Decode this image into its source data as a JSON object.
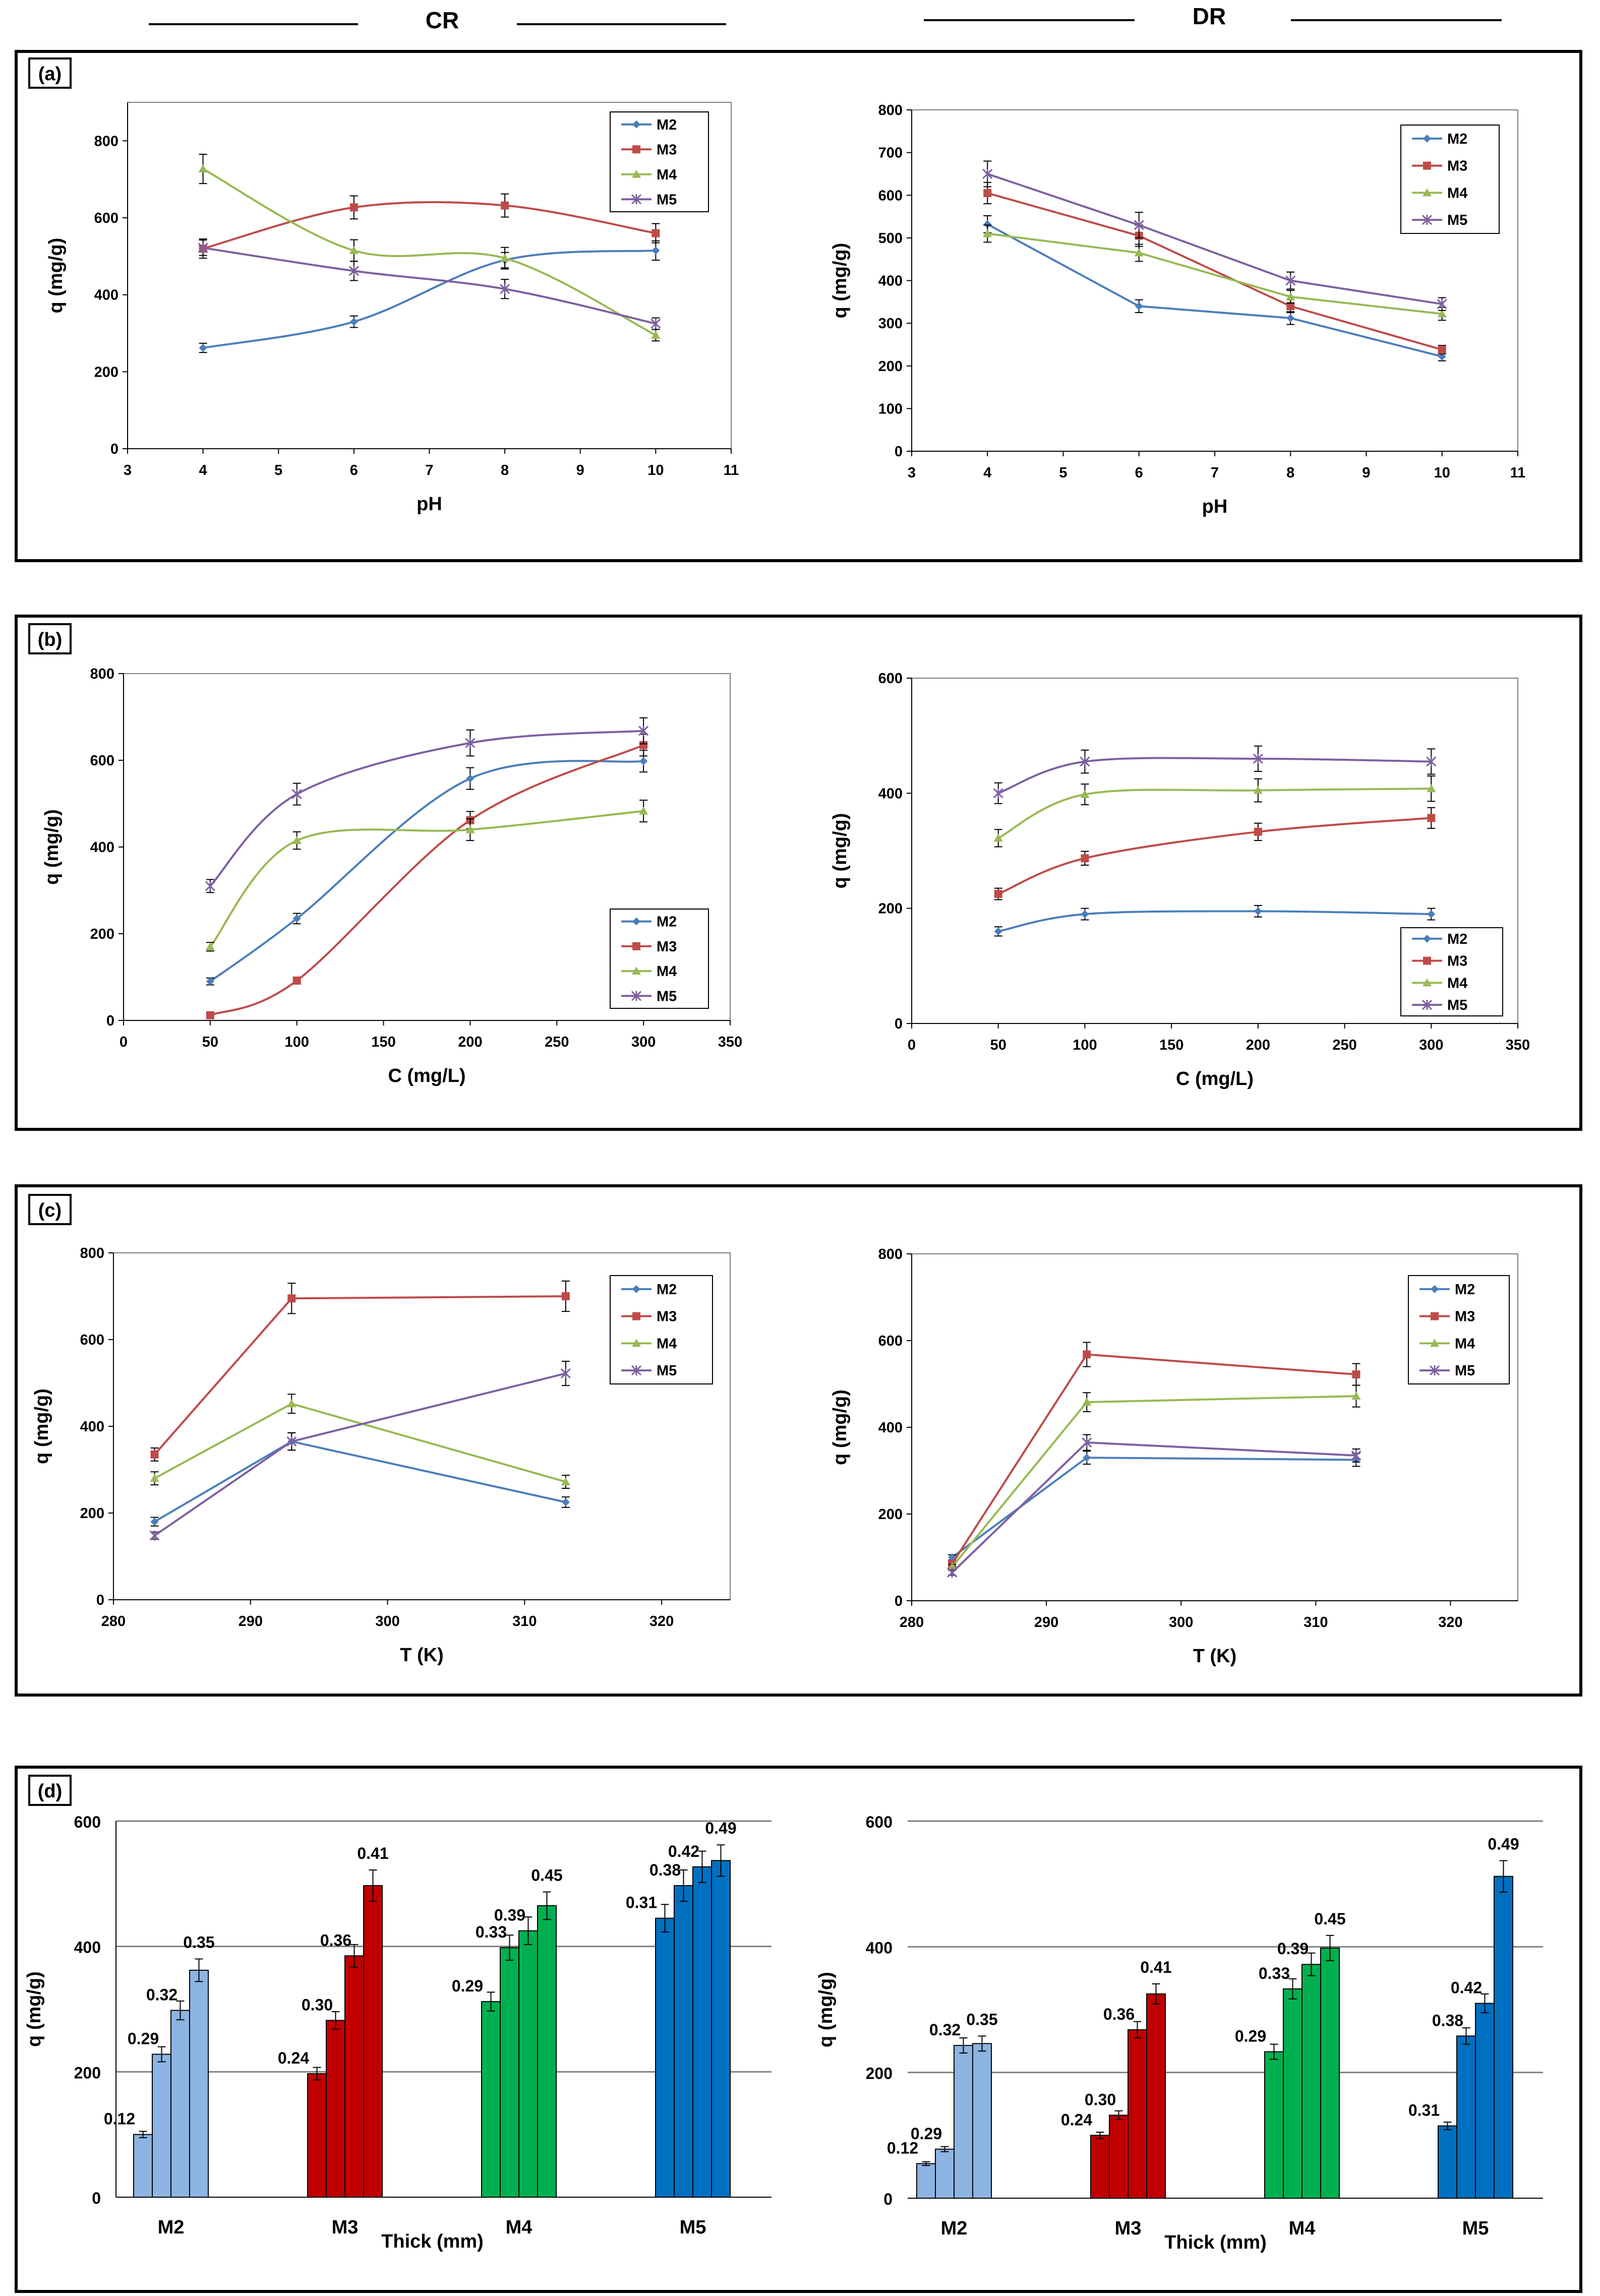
{
  "headers": {
    "left": "CR",
    "right": "DR"
  },
  "panels": [
    {
      "label": "(a)"
    },
    {
      "label": "(b)"
    },
    {
      "label": "(c)"
    },
    {
      "label": "(d)"
    }
  ],
  "colors": {
    "M2": "#4a7ebb",
    "M3": "#be4b48",
    "M4": "#98b954",
    "M5": "#7d60a0",
    "bar_M2": "#8db4e2",
    "bar_M3": "#c00000",
    "bar_M4": "#00b050",
    "bar_M5": "#0070c0"
  },
  "chart_data": [
    {
      "id": "a-CR",
      "panel": "(a)",
      "side": "CR",
      "type": "line",
      "xlabel": "pH",
      "ylabel": "q (mg/g)",
      "xlim": [
        3,
        11
      ],
      "ylim": [
        0,
        900
      ],
      "xticks": [
        3,
        4,
        5,
        6,
        7,
        8,
        9,
        10,
        11
      ],
      "yticks": [
        0,
        200,
        400,
        600,
        800
      ],
      "legend": "top-right",
      "series": [
        {
          "name": "M2",
          "x": [
            4,
            6,
            8,
            10
          ],
          "y": [
            262,
            330,
            490,
            515
          ],
          "err": [
            12,
            15,
            20,
            25
          ]
        },
        {
          "name": "M3",
          "x": [
            4,
            6,
            8,
            10
          ],
          "y": [
            520,
            627,
            632,
            560
          ],
          "err": [
            25,
            30,
            30,
            25
          ]
        },
        {
          "name": "M4",
          "x": [
            4,
            6,
            8,
            10
          ],
          "y": [
            727,
            515,
            495,
            295
          ],
          "err": [
            38,
            28,
            28,
            15
          ]
        },
        {
          "name": "M5",
          "x": [
            4,
            6,
            8,
            10
          ],
          "y": [
            522,
            462,
            415,
            325
          ],
          "err": [
            20,
            25,
            25,
            15
          ]
        }
      ]
    },
    {
      "id": "a-DR",
      "panel": "(a)",
      "side": "DR",
      "type": "line",
      "xlabel": "pH",
      "ylabel": "q (mg/g)",
      "xlim": [
        3,
        11
      ],
      "ylim": [
        0,
        800
      ],
      "xticks": [
        3,
        4,
        5,
        6,
        7,
        8,
        9,
        10,
        11
      ],
      "yticks": [
        0,
        100,
        200,
        300,
        400,
        500,
        600,
        700,
        800
      ],
      "legend": "top-right",
      "series": [
        {
          "name": "M2",
          "x": [
            4,
            6,
            8,
            10
          ],
          "y": [
            532,
            340,
            312,
            222
          ],
          "err": [
            20,
            15,
            15,
            10
          ]
        },
        {
          "name": "M3",
          "x": [
            4,
            6,
            8,
            10
          ],
          "y": [
            605,
            505,
            340,
            238
          ],
          "err": [
            25,
            25,
            15,
            10
          ]
        },
        {
          "name": "M4",
          "x": [
            4,
            6,
            8,
            10
          ],
          "y": [
            510,
            465,
            362,
            322
          ],
          "err": [
            20,
            20,
            15,
            15
          ]
        },
        {
          "name": "M5",
          "x": [
            4,
            6,
            8,
            10
          ],
          "y": [
            650,
            530,
            400,
            345
          ],
          "err": [
            30,
            30,
            20,
            15
          ]
        }
      ]
    },
    {
      "id": "b-CR",
      "panel": "(b)",
      "side": "CR",
      "type": "line",
      "xlabel": "C (mg/L)",
      "ylabel": "q (mg/g)",
      "xlim": [
        0,
        350
      ],
      "ylim": [
        0,
        800
      ],
      "xticks": [
        0,
        50,
        100,
        150,
        200,
        250,
        300,
        350
      ],
      "yticks": [
        0,
        200,
        400,
        600,
        800
      ],
      "legend": "bottom-right",
      "series": [
        {
          "name": "M2",
          "x": [
            50,
            100,
            200,
            300
          ],
          "y": [
            90,
            235,
            558,
            598
          ],
          "err": [
            8,
            12,
            25,
            25
          ]
        },
        {
          "name": "M3",
          "x": [
            50,
            100,
            200,
            300
          ],
          "y": [
            12,
            92,
            462,
            635
          ],
          "err": [
            5,
            8,
            20,
            25
          ]
        },
        {
          "name": "M4",
          "x": [
            50,
            100,
            200,
            300
          ],
          "y": [
            170,
            415,
            440,
            483
          ],
          "err": [
            10,
            20,
            25,
            25
          ]
        },
        {
          "name": "M5",
          "x": [
            50,
            100,
            200,
            300
          ],
          "y": [
            310,
            522,
            640,
            668
          ],
          "err": [
            15,
            25,
            30,
            30
          ]
        }
      ]
    },
    {
      "id": "b-DR",
      "panel": "(b)",
      "side": "DR",
      "type": "line",
      "xlabel": "C (mg/L)",
      "ylabel": "q (mg/g)",
      "xlim": [
        0,
        350
      ],
      "ylim": [
        0,
        600
      ],
      "xticks": [
        0,
        50,
        100,
        150,
        200,
        250,
        300,
        350
      ],
      "yticks": [
        0,
        200,
        400,
        600
      ],
      "legend": "bottom-right",
      "series": [
        {
          "name": "M2",
          "x": [
            50,
            100,
            200,
            300
          ],
          "y": [
            160,
            190,
            195,
            190
          ],
          "err": [
            8,
            10,
            10,
            10
          ]
        },
        {
          "name": "M3",
          "x": [
            50,
            100,
            200,
            300
          ],
          "y": [
            225,
            287,
            333,
            357
          ],
          "err": [
            10,
            12,
            15,
            18
          ]
        },
        {
          "name": "M4",
          "x": [
            50,
            100,
            200,
            300
          ],
          "y": [
            322,
            398,
            405,
            408
          ],
          "err": [
            15,
            18,
            20,
            22
          ]
        },
        {
          "name": "M5",
          "x": [
            50,
            100,
            200,
            300
          ],
          "y": [
            400,
            455,
            460,
            455
          ],
          "err": [
            18,
            20,
            22,
            22
          ]
        }
      ]
    },
    {
      "id": "c-CR",
      "panel": "(c)",
      "side": "CR",
      "type": "line",
      "xlabel": "T (K)",
      "ylabel": "q (mg/g)",
      "xlim": [
        280,
        325
      ],
      "ylim": [
        0,
        800
      ],
      "xticks": [
        280,
        290,
        300,
        310,
        320
      ],
      "yticks": [
        0,
        200,
        400,
        600,
        800
      ],
      "legend": "top-right",
      "series": [
        {
          "name": "M2",
          "x": [
            283,
            293,
            313
          ],
          "y": [
            180,
            365,
            225
          ],
          "err": [
            10,
            20,
            12
          ]
        },
        {
          "name": "M3",
          "x": [
            283,
            293,
            313
          ],
          "y": [
            335,
            695,
            700
          ],
          "err": [
            15,
            35,
            35
          ]
        },
        {
          "name": "M4",
          "x": [
            283,
            293,
            313
          ],
          "y": [
            280,
            452,
            272
          ],
          "err": [
            15,
            22,
            15
          ]
        },
        {
          "name": "M5",
          "x": [
            283,
            293,
            313
          ],
          "y": [
            148,
            365,
            522
          ],
          "err": [
            8,
            20,
            28
          ]
        }
      ]
    },
    {
      "id": "c-DR",
      "panel": "(c)",
      "side": "DR",
      "type": "line",
      "xlabel": "T (K)",
      "ylabel": "q (mg/g)",
      "xlim": [
        280,
        325
      ],
      "ylim": [
        0,
        800
      ],
      "xticks": [
        280,
        290,
        300,
        310,
        320
      ],
      "yticks": [
        0,
        200,
        400,
        600,
        800
      ],
      "legend": "top-right",
      "series": [
        {
          "name": "M2",
          "x": [
            283,
            293,
            313
          ],
          "y": [
            100,
            330,
            325
          ],
          "err": [
            6,
            15,
            15
          ]
        },
        {
          "name": "M3",
          "x": [
            283,
            293,
            313
          ],
          "y": [
            85,
            568,
            522
          ],
          "err": [
            6,
            28,
            25
          ]
        },
        {
          "name": "M4",
          "x": [
            283,
            293,
            313
          ],
          "y": [
            78,
            458,
            472
          ],
          "err": [
            6,
            22,
            25
          ]
        },
        {
          "name": "M5",
          "x": [
            283,
            293,
            313
          ],
          "y": [
            65,
            365,
            335
          ],
          "err": [
            6,
            18,
            15
          ]
        }
      ]
    },
    {
      "id": "d-CR",
      "panel": "(d)",
      "side": "CR",
      "type": "bar",
      "xlabel": "Thick (mm)",
      "ylabel": "q (mg/g)",
      "ylim": [
        0,
        600
      ],
      "yticks": [
        0,
        200,
        400,
        600
      ],
      "categories": [
        "M2",
        "M3",
        "M4",
        "M5"
      ],
      "groups": [
        {
          "name": "M2",
          "values": [
            100,
            228,
            298,
            362
          ],
          "err": [
            5,
            12,
            15,
            18
          ],
          "labels": [
            "0.12",
            "0.29",
            "0.32",
            "0.35"
          ]
        },
        {
          "name": "M3",
          "values": [
            197,
            282,
            385,
            497
          ],
          "err": [
            10,
            14,
            18,
            25
          ],
          "labels": [
            "0.24",
            "0.30",
            "0.36",
            "0.41"
          ]
        },
        {
          "name": "M4",
          "values": [
            312,
            398,
            425,
            465
          ],
          "err": [
            15,
            20,
            22,
            22
          ],
          "labels": [
            "0.29",
            "0.33",
            "0.39",
            "0.45"
          ]
        },
        {
          "name": "M5",
          "values": [
            445,
            497,
            527,
            537
          ],
          "err": [
            22,
            25,
            25,
            25
          ],
          "labels": [
            "0.31",
            "0.38",
            "0.42",
            "0.49"
          ]
        }
      ]
    },
    {
      "id": "d-DR",
      "panel": "(d)",
      "side": "DR",
      "type": "bar",
      "xlabel": "Thick (mm)",
      "ylabel": "q (mg/g)",
      "ylim": [
        0,
        600
      ],
      "yticks": [
        0,
        200,
        400,
        600
      ],
      "categories": [
        "M2",
        "M3",
        "M4",
        "M5"
      ],
      "groups": [
        {
          "name": "M2",
          "values": [
            55,
            78,
            243,
            246
          ],
          "err": [
            3,
            4,
            12,
            12
          ],
          "labels": [
            "0.12",
            "0.29",
            "0.32",
            "0.35"
          ]
        },
        {
          "name": "M3",
          "values": [
            100,
            132,
            268,
            325
          ],
          "err": [
            5,
            7,
            13,
            16
          ],
          "labels": [
            "0.24",
            "0.30",
            "0.36",
            "0.41"
          ]
        },
        {
          "name": "M4",
          "values": [
            233,
            333,
            372,
            398
          ],
          "err": [
            12,
            16,
            18,
            20
          ],
          "labels": [
            "0.29",
            "0.33",
            "0.39",
            "0.45"
          ]
        },
        {
          "name": "M5",
          "values": [
            115,
            258,
            310,
            512
          ],
          "err": [
            6,
            13,
            15,
            25
          ],
          "labels": [
            "0.31",
            "0.38",
            "0.42",
            "0.49"
          ]
        }
      ]
    }
  ]
}
